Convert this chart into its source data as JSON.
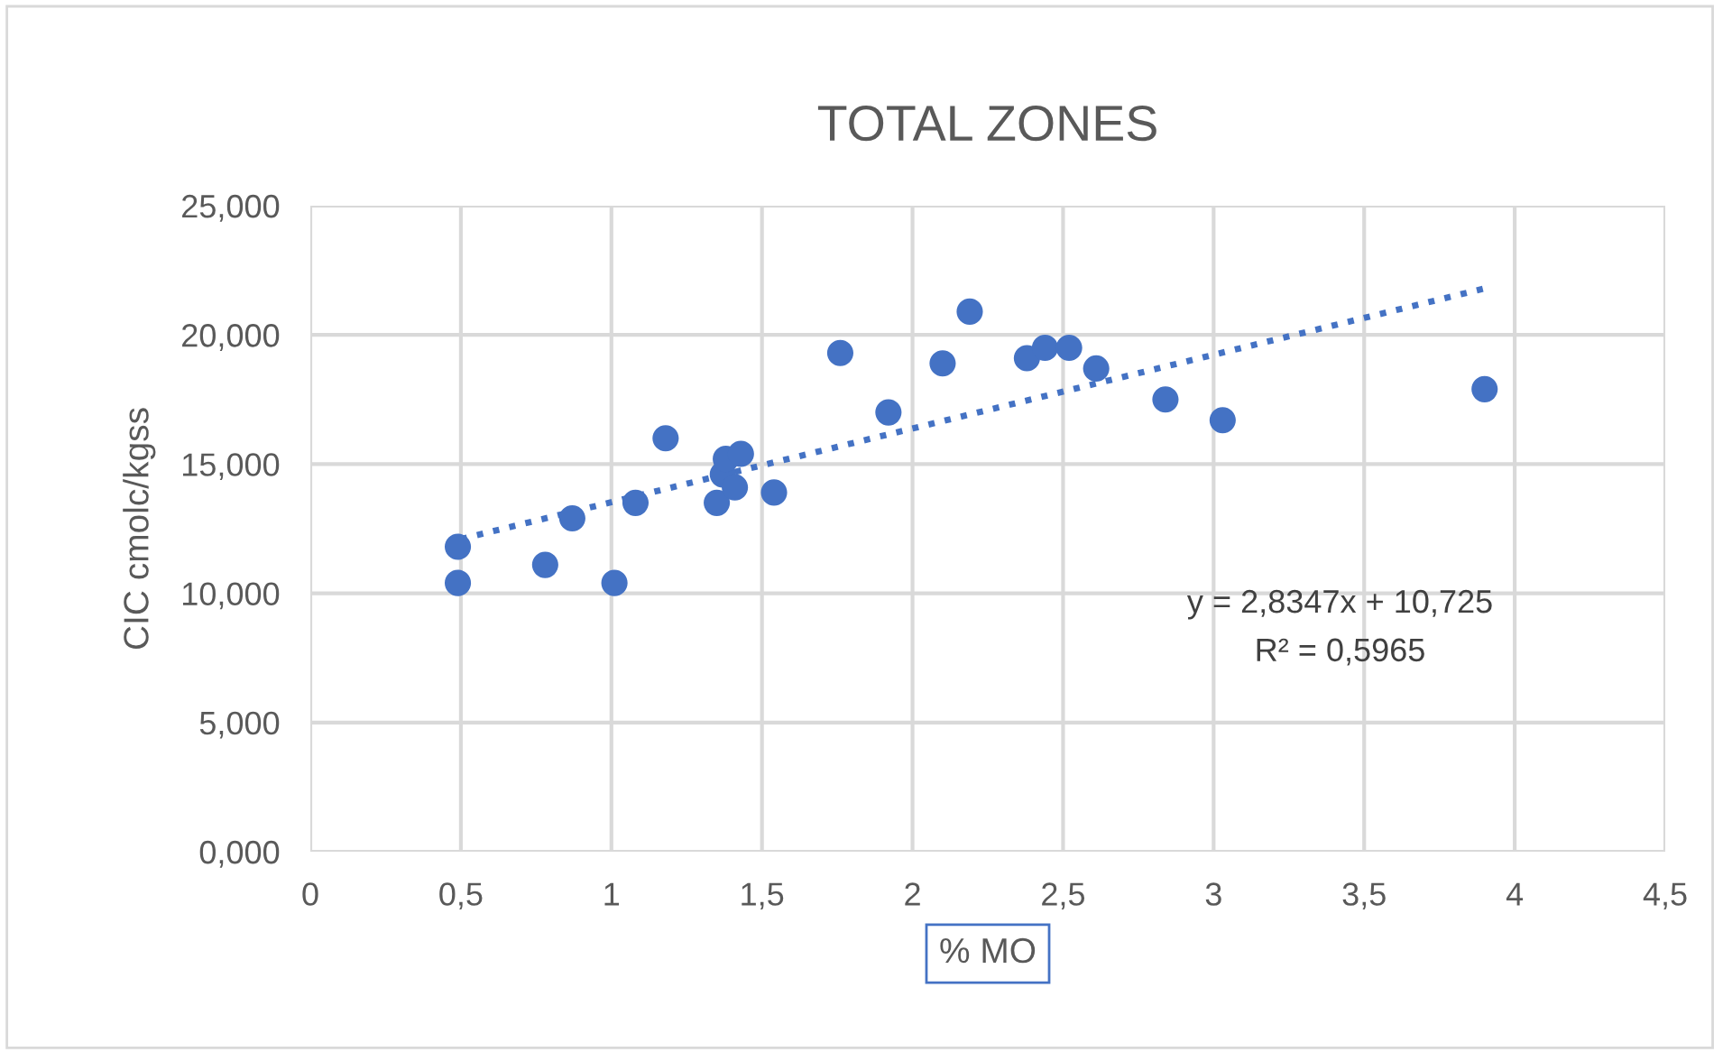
{
  "chart_data": {
    "type": "scatter",
    "title": "TOTAL ZONES",
    "xlabel": "% MO",
    "ylabel": "CIC cmolc/kgss",
    "series": [
      {
        "color": "#4472c4",
        "marker": "circle",
        "x": [
          0.49,
          0.49,
          0.78,
          0.87,
          1.01,
          1.08,
          1.18,
          1.35,
          1.37,
          1.38,
          1.41,
          1.43,
          1.54,
          1.76,
          1.92,
          2.1,
          2.19,
          2.38,
          2.44,
          2.52,
          2.61,
          2.84,
          3.03,
          3.9
        ],
        "values": [
          11.8,
          10.4,
          11.1,
          12.9,
          10.4,
          13.5,
          16.0,
          13.5,
          14.6,
          15.2,
          14.1,
          15.4,
          13.9,
          19.3,
          17.0,
          18.9,
          20.9,
          19.1,
          19.5,
          19.5,
          18.7,
          17.5,
          16.7,
          17.9
        ]
      },
      {
        "type": "line",
        "color": "#4472c4",
        "line_style": "dotted",
        "x": [
          0.5,
          3.9
        ],
        "values": [
          12.1,
          21.8
        ]
      }
    ],
    "annotations": [
      "y = 2,8347x + 10,725",
      "R² = 0,5965"
    ],
    "xlim": [
      0,
      4.5
    ],
    "ylim": [
      0,
      25
    ],
    "xticks": [
      0,
      {
        "value": 0.5,
        "label": "0,5"
      },
      1,
      {
        "value": 1.5,
        "label": "1,5"
      },
      2,
      {
        "value": 2.5,
        "label": "2,5"
      },
      3,
      {
        "value": 3.5,
        "label": "3,5"
      },
      4,
      {
        "value": 4.5,
        "label": "4,5"
      }
    ],
    "yticks": [
      {
        "value": 0,
        "label": "0,000"
      },
      {
        "value": 5,
        "label": "5,000"
      },
      {
        "value": 10,
        "label": "10,000"
      },
      {
        "value": 15,
        "label": "15,000"
      },
      {
        "value": 20,
        "label": "20,000"
      },
      {
        "value": 25,
        "label": "25,000"
      }
    ],
    "grid": true,
    "legend": false
  }
}
